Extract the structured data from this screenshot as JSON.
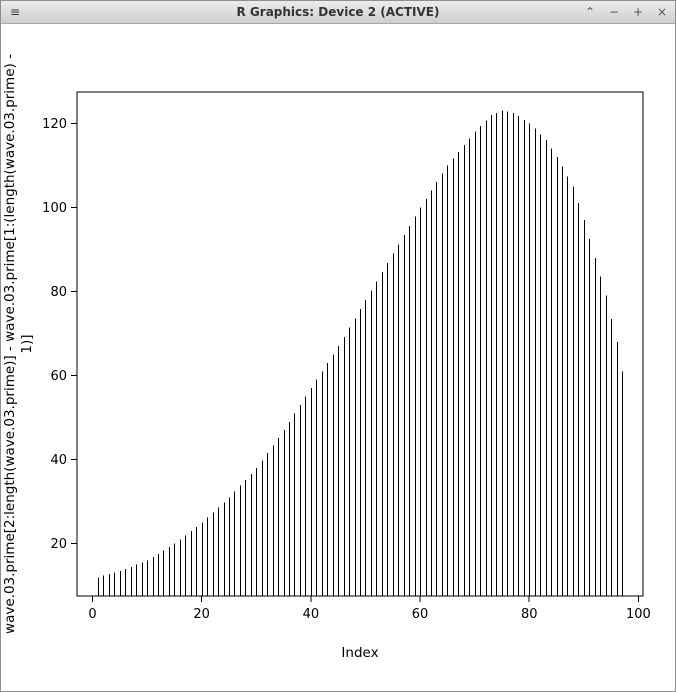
{
  "window": {
    "title": "R Graphics: Device 2 (ACTIVE)",
    "menu_icon": "≡",
    "controls": {
      "shade": "⌃",
      "minimize": "−",
      "maximize": "+",
      "close": "×"
    }
  },
  "chart_data": {
    "type": "bar",
    "style": "vertical-line plot (R plot type='h'), 1px black lines from baseline",
    "title": "",
    "xlabel": "Index",
    "ylabel": "wave.03.prime[2:length(wave.03.prime)] - wave.03.prime[1:(length(wave.03.prime) - 1)]",
    "ylabel_lines": [
      "wave.03.prime[2:length(wave.03.prime)] - wave.03.prime[1:(length(wave.03.prime) -",
      "1)]"
    ],
    "x_start": 1,
    "x_step": 1,
    "values": [
      12,
      12.4,
      12.8,
      13.1,
      13.5,
      14,
      14.5,
      15,
      15.5,
      16,
      16.8,
      17.6,
      18.4,
      19.2,
      20,
      21,
      22,
      23,
      24,
      25,
      26.2,
      27.4,
      28.6,
      29.8,
      31,
      32.4,
      33.8,
      35.2,
      36.6,
      38,
      39.8,
      41.6,
      43.4,
      45.2,
      47,
      49,
      51,
      53,
      55,
      57,
      59,
      61,
      63,
      65,
      67,
      69.2,
      71.4,
      73.6,
      75.8,
      78,
      80.2,
      82.4,
      84.6,
      86.8,
      89,
      91.2,
      93.4,
      95.6,
      97.8,
      100,
      102,
      104,
      106,
      108,
      110,
      111.6,
      113.2,
      114.8,
      116.4,
      118,
      119.3,
      120.7,
      122,
      122.5,
      123,
      122.8,
      122.5,
      121.7,
      120.8,
      120,
      118.7,
      117.3,
      116,
      114,
      112,
      109.7,
      107.3,
      105,
      101,
      97,
      92.5,
      88,
      83.5,
      79,
      73.5,
      68,
      61
    ],
    "xticks": [
      0,
      20,
      40,
      60,
      80,
      100
    ],
    "yticks": [
      20,
      40,
      60,
      80,
      100,
      120
    ],
    "xlim": [
      -2.84,
      100.84
    ],
    "ylim": [
      7.56,
      127.44
    ],
    "line_color": "#000000",
    "axis_color": "#000000",
    "background": "#ffffff",
    "grid": false,
    "legend": null
  }
}
